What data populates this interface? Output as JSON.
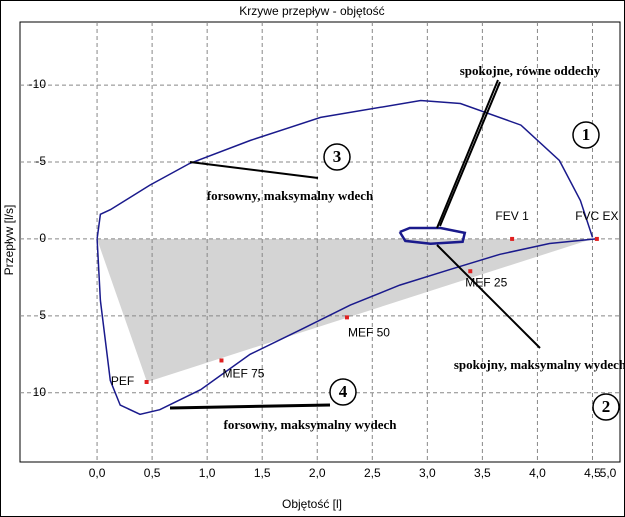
{
  "chart_data": {
    "type": "line",
    "title": "Krzywe przepływ - objętość",
    "x_label": "Objętość [l]",
    "y_label": "Przepływ [l/s]",
    "xlim": [
      -0.7,
      4.75
    ],
    "ylim": [
      -14.1,
      14.5
    ],
    "y_inverted": true,
    "grid": true,
    "xticks": [
      {
        "value": 0,
        "label": "0,0"
      },
      {
        "value": 0.5,
        "label": "0,5"
      },
      {
        "value": 1,
        "label": "1,0"
      },
      {
        "value": 1.5,
        "label": "1,5"
      },
      {
        "value": 2,
        "label": "2,0"
      },
      {
        "value": 2.5,
        "label": "2,5"
      },
      {
        "value": 3,
        "label": "3,0"
      },
      {
        "value": 3.5,
        "label": "3,5"
      },
      {
        "value": 4,
        "label": "4,0"
      },
      {
        "value": 4.5,
        "label": "4,5"
      },
      {
        "value": 5,
        "label": "5,0"
      }
    ],
    "yticks": [
      -10,
      -5,
      0,
      5,
      10
    ],
    "series": [
      {
        "color": "#1a1a8c",
        "x": [
          0,
          0.03,
          0.12,
          0.48,
          0.84,
          1.39,
          2.03,
          2.94,
          3.3,
          3.85,
          4.2,
          4.39,
          4.5
        ],
        "values": [
          0,
          -1.6,
          -1.9,
          -3.5,
          -4.9,
          -6.4,
          -7.9,
          -9.0,
          -8.8,
          -7.4,
          -5.1,
          -2.5,
          -0.1
        ]
      },
      {
        "color": "#1a1a8c",
        "x": [
          0,
          0.03,
          0.12,
          0.21,
          0.39,
          0.57,
          0.94,
          1.39,
          1.85,
          2.3,
          2.75,
          3.2,
          3.66,
          4.11,
          4.53
        ],
        "values": [
          0,
          4,
          9.2,
          10.8,
          11.4,
          11.1,
          9.8,
          7.5,
          5.9,
          4.3,
          3.0,
          2.0,
          1.0,
          0.3,
          0
        ]
      },
      {
        "color": "#1a1a8c",
        "x": [
          2.75,
          2.84,
          3.12,
          3.34,
          3.32,
          3.03,
          2.8,
          2.75
        ],
        "values": [
          -0.45,
          -0.71,
          -0.71,
          -0.39,
          0.19,
          0.32,
          0.13,
          -0.45
        ]
      }
    ],
    "markers": [
      {
        "label": "PEF",
        "x": 0.45,
        "y": 9.3
      },
      {
        "label": "MEF 75",
        "x": 1.13,
        "y": 7.9
      },
      {
        "label": "MEF 50",
        "x": 2.27,
        "y": 5.1
      },
      {
        "label": "MEF 25",
        "x": 3.39,
        "y": 2.1
      },
      {
        "label": "FEV 1",
        "x": 3.77,
        "y": 0
      },
      {
        "label": "FVC EX",
        "x": 4.54,
        "y": 0
      }
    ],
    "marker_color": "#e02020",
    "annotations": [
      "spokojne, równe oddechy",
      "forsowny, maksymalny wdech",
      "spokojny, maksymalny wydech",
      "forsowny, maksymalny wydech"
    ],
    "circled_numbers": [
      "1",
      "2",
      "3",
      "4"
    ]
  }
}
